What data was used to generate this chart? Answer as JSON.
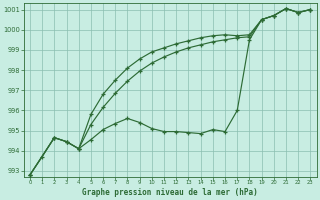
{
  "title": "Graphe pression niveau de la mer (hPa)",
  "bg_color": "#c8ede2",
  "grid_color": "#8bbfb0",
  "line_color": "#2d6b35",
  "x_min": 0,
  "x_max": 23,
  "y_min": 992.7,
  "y_max": 1001.3,
  "yticks": [
    993,
    994,
    995,
    996,
    997,
    998,
    999,
    1000,
    1001
  ],
  "xticks": [
    0,
    1,
    2,
    3,
    4,
    5,
    6,
    7,
    8,
    9,
    10,
    11,
    12,
    13,
    14,
    15,
    16,
    17,
    18,
    19,
    20,
    21,
    22,
    23
  ],
  "line1_x": [
    0,
    1,
    2,
    3,
    4,
    5,
    6,
    7,
    8,
    9,
    10,
    11,
    12,
    13,
    14,
    15,
    16,
    17,
    18,
    19,
    20,
    21,
    22,
    23
  ],
  "line1_y": [
    992.8,
    993.7,
    994.65,
    994.45,
    994.1,
    994.55,
    995.05,
    995.35,
    995.6,
    995.4,
    995.1,
    994.95,
    994.95,
    994.9,
    994.85,
    995.05,
    994.95,
    996.0,
    999.5,
    1000.5,
    1000.7,
    1001.05,
    1000.85,
    1001.0
  ],
  "line2_x": [
    0,
    2,
    3,
    4,
    5,
    6,
    7,
    8,
    9,
    10,
    11,
    12,
    13,
    14,
    15,
    16,
    17,
    18,
    19,
    20,
    21,
    22,
    23
  ],
  "line2_y": [
    992.8,
    994.65,
    994.45,
    994.1,
    995.8,
    996.8,
    997.5,
    998.1,
    998.55,
    998.9,
    999.1,
    999.3,
    999.45,
    999.6,
    999.7,
    999.75,
    999.7,
    999.75,
    1000.5,
    1000.7,
    1001.05,
    1000.85,
    1001.0
  ],
  "line3_x": [
    0,
    2,
    3,
    4,
    5,
    6,
    7,
    8,
    9,
    10,
    11,
    12,
    13,
    14,
    15,
    16,
    17,
    18,
    19,
    20,
    21,
    22,
    23
  ],
  "line3_y": [
    992.8,
    994.65,
    994.45,
    994.1,
    995.3,
    996.15,
    996.85,
    997.45,
    997.95,
    998.35,
    998.65,
    998.9,
    999.1,
    999.25,
    999.4,
    999.5,
    999.6,
    999.65,
    1000.5,
    1000.7,
    1001.05,
    1000.85,
    1001.0
  ]
}
